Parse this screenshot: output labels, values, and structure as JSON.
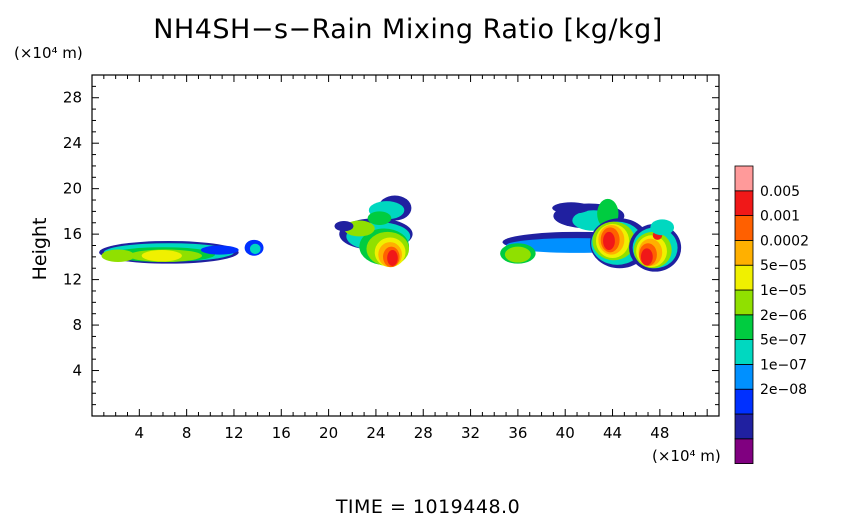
{
  "chart_data": {
    "type": "heatmap",
    "title": "NH4SH−s−Rain Mixing Ratio [kg/kg]",
    "ylabel": "Height",
    "y_unit": "(×10⁴ m)",
    "x_unit": "(×10⁴ m)",
    "xlim": [
      0,
      53
    ],
    "ylim": [
      0,
      30
    ],
    "x_ticks": [
      "4",
      "8",
      "12",
      "16",
      "20",
      "24",
      "28",
      "32",
      "36",
      "40",
      "44",
      "48"
    ],
    "y_ticks": [
      "4",
      "8",
      "12",
      "16",
      "20",
      "24",
      "28"
    ],
    "colorbar": {
      "labels": [
        "0.005",
        "0.001",
        "0.0002",
        "5e−05",
        "1e−05",
        "2e−06",
        "5e−07",
        "1e−07",
        "2e−08"
      ],
      "colors": [
        "#800080",
        "#2020a0",
        "#0030ff",
        "#0090ff",
        "#00d8c0",
        "#00cc40",
        "#90e000",
        "#f0f000",
        "#ffb000",
        "#ff6000",
        "#f01818",
        "#ff9a9a"
      ]
    },
    "regions": [
      {
        "x": [
          0.6,
          13
        ],
        "y": [
          13.5,
          15.5
        ],
        "peak": "5e−05"
      },
      {
        "x": [
          13.3,
          14.8
        ],
        "y": [
          14,
          15.5
        ],
        "peak": "1e−07"
      },
      {
        "x": [
          21,
          27
        ],
        "y": [
          12.8,
          19.8
        ],
        "peak": "0.001"
      },
      {
        "x": [
          34,
          50
        ],
        "y": [
          13,
          19.5
        ],
        "peak": "0.001"
      }
    ]
  },
  "footer": {
    "time_label": "TIME = 1019448.0"
  }
}
